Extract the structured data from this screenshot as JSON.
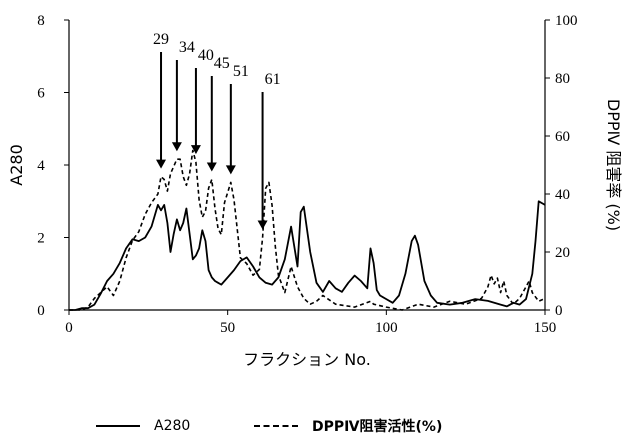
{
  "chart_data": {
    "type": "line",
    "xlabel": "フラクション No.",
    "ylabel_left": "A280",
    "ylabel_right": "DPPⅣ 阻害率 (%)",
    "xlim": [
      0,
      150
    ],
    "ylim_left": [
      0,
      8
    ],
    "ylim_right": [
      0,
      100
    ],
    "x_ticks": [
      0,
      50,
      100,
      150
    ],
    "y_left_ticks": [
      0,
      2,
      4,
      6,
      8
    ],
    "y_right_ticks": [
      0,
      20,
      40,
      60,
      80,
      100
    ],
    "grid": false,
    "legend_position": "bottom",
    "series": [
      {
        "name": "A280",
        "axis": "left",
        "style": "solid",
        "x": [
          0,
          2,
          4,
          6,
          8,
          10,
          12,
          14,
          16,
          18,
          20,
          22,
          24,
          26,
          27,
          28,
          29,
          30,
          31,
          32,
          33,
          34,
          35,
          36,
          37,
          38,
          39,
          40,
          41,
          42,
          43,
          44,
          45,
          46,
          47,
          48,
          50,
          52,
          54,
          56,
          58,
          60,
          62,
          64,
          66,
          68,
          70,
          72,
          73,
          74,
          76,
          78,
          80,
          82,
          84,
          86,
          88,
          90,
          92,
          94,
          95,
          96,
          97,
          98,
          100,
          102,
          104,
          106,
          108,
          109,
          110,
          112,
          114,
          116,
          120,
          124,
          128,
          132,
          136,
          138,
          140,
          142,
          144,
          146,
          147,
          148,
          150
        ],
        "values": [
          0,
          0,
          0.05,
          0.05,
          0.15,
          0.45,
          0.8,
          1.0,
          1.3,
          1.7,
          1.95,
          1.9,
          2.0,
          2.3,
          2.6,
          2.9,
          2.75,
          2.9,
          2.4,
          1.6,
          2.1,
          2.5,
          2.2,
          2.4,
          2.8,
          2.1,
          1.4,
          1.5,
          1.7,
          2.2,
          1.9,
          1.1,
          0.9,
          0.8,
          0.75,
          0.7,
          0.9,
          1.1,
          1.35,
          1.45,
          1.2,
          0.9,
          0.75,
          0.7,
          0.9,
          1.4,
          2.3,
          1.2,
          2.7,
          2.85,
          1.6,
          0.75,
          0.5,
          0.8,
          0.6,
          0.5,
          0.75,
          0.95,
          0.8,
          0.6,
          1.7,
          1.3,
          0.55,
          0.4,
          0.3,
          0.2,
          0.4,
          1.0,
          1.9,
          2.05,
          1.8,
          0.8,
          0.4,
          0.2,
          0.15,
          0.2,
          0.3,
          0.25,
          0.15,
          0.1,
          0.2,
          0.15,
          0.3,
          1.0,
          1.9,
          3.0,
          2.9
        ]
      },
      {
        "name": "DPPⅣ阻害活性(%)",
        "axis": "right",
        "style": "dashed",
        "x": [
          0,
          2,
          4,
          6,
          8,
          10,
          12,
          14,
          16,
          18,
          20,
          22,
          24,
          26,
          28,
          29,
          30,
          31,
          32,
          34,
          35,
          36,
          37,
          38,
          39,
          40,
          41,
          42,
          43,
          44,
          45,
          46,
          47,
          48,
          49,
          51,
          52,
          53,
          54,
          56,
          58,
          60,
          61,
          62,
          63,
          64,
          65,
          66,
          68,
          70,
          72,
          74,
          76,
          78,
          80,
          84,
          90,
          95,
          96,
          100,
          105,
          110,
          115,
          120,
          125,
          130,
          132,
          133,
          134,
          135,
          136,
          137,
          138,
          140,
          142,
          144,
          145,
          146,
          148,
          150
        ],
        "values": [
          0,
          0,
          0,
          1,
          4,
          6,
          8,
          5,
          10,
          18,
          24,
          27,
          33,
          37,
          40,
          46,
          45,
          41,
          47,
          52,
          52,
          46,
          43,
          47,
          55,
          51,
          38,
          32,
          34,
          42,
          45,
          35,
          28,
          26,
          37,
          44,
          38,
          28,
          18,
          16,
          12,
          14,
          25,
          42,
          44,
          36,
          22,
          12,
          6,
          15,
          8,
          4,
          2,
          3,
          5,
          2,
          1,
          3,
          2,
          1,
          0,
          2,
          1,
          3,
          2,
          4,
          8,
          12,
          9,
          11,
          6,
          10,
          5,
          2,
          4,
          8,
          10,
          6,
          3,
          4
        ]
      }
    ],
    "annotations": [
      {
        "label": "29",
        "x": 29
      },
      {
        "label": "34",
        "x": 34
      },
      {
        "label": "40",
        "x": 40
      },
      {
        "label": "45",
        "x": 45
      },
      {
        "label": "51",
        "x": 51
      },
      {
        "label": "61",
        "x": 61
      }
    ]
  }
}
